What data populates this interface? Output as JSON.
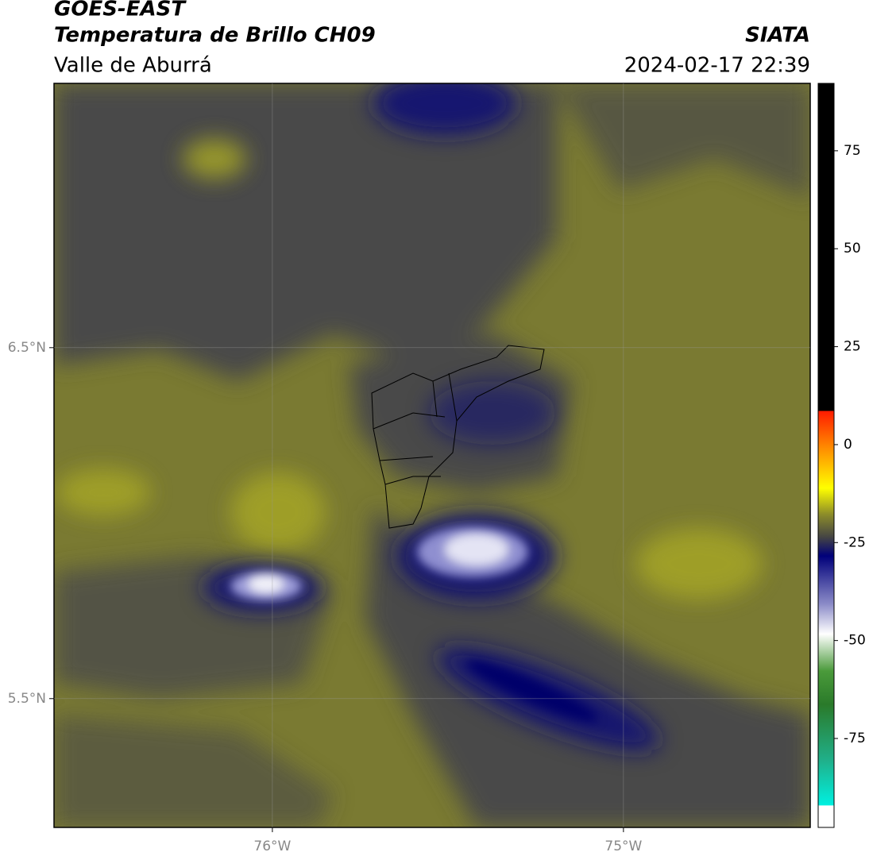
{
  "header": {
    "title": "GOES-EAST",
    "subtitle": "Temperatura de Brillo CH09",
    "region": "Valle de Aburrá",
    "source": "SIATA",
    "datetime": "2024-02-17 22:39"
  },
  "map": {
    "xlim": [
      -76.622,
      -74.468
    ],
    "ylim": [
      5.133,
      7.253
    ],
    "xticks": [
      {
        "value": -76,
        "label": "76°W"
      },
      {
        "value": -75,
        "label": "75°W"
      }
    ],
    "yticks": [
      {
        "value": 5.5,
        "label": "5.5°N"
      },
      {
        "value": 6.5,
        "label": "6.5°N"
      }
    ],
    "grid": true
  },
  "colorbar": {
    "lim": [
      -97.7,
      92.2
    ],
    "ticks": [
      -75,
      -50,
      -25,
      0,
      25,
      50,
      75
    ]
  }
}
